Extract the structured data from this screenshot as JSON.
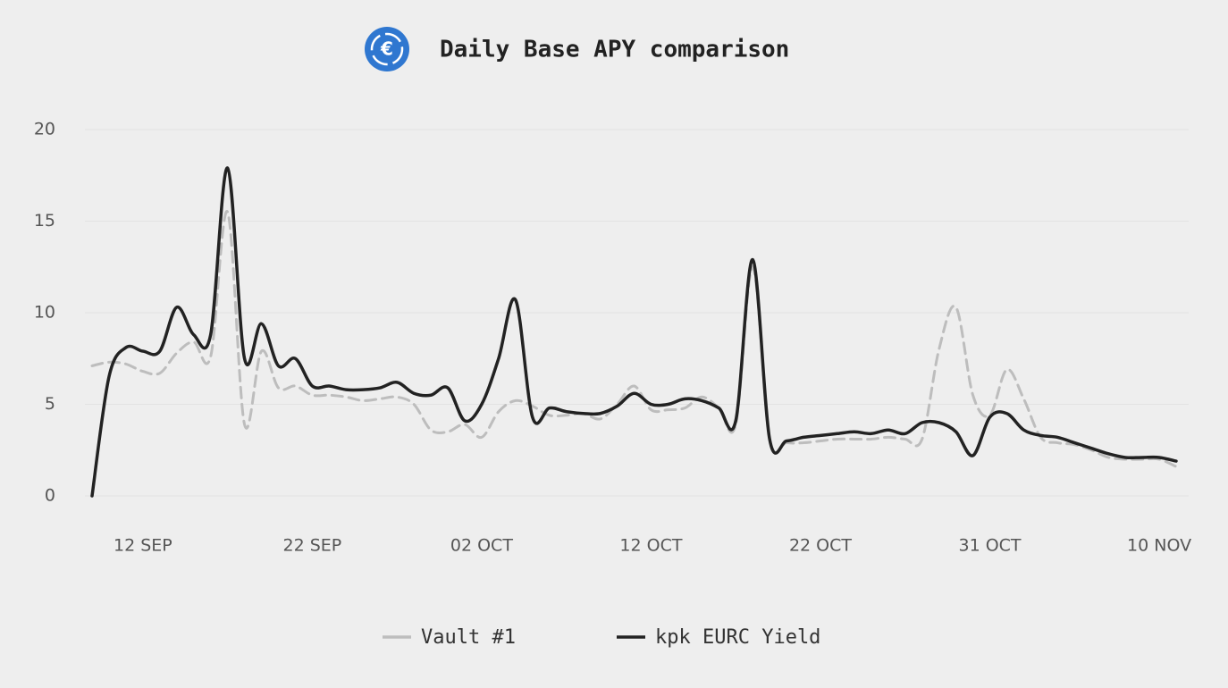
{
  "chart_data": {
    "type": "line",
    "title": "Daily Base APY comparison",
    "categories": [
      null,
      null,
      null,
      "12 SEP",
      null,
      null,
      null,
      null,
      null,
      null,
      null,
      null,
      null,
      "22 SEP",
      null,
      null,
      null,
      null,
      null,
      null,
      null,
      null,
      null,
      "02 OCT",
      null,
      null,
      null,
      null,
      null,
      null,
      null,
      null,
      null,
      "12 OCT",
      null,
      null,
      null,
      null,
      null,
      null,
      null,
      null,
      null,
      "22 OCT",
      null,
      null,
      null,
      null,
      null,
      null,
      null,
      null,
      null,
      "31 OCT",
      null,
      null,
      null,
      null,
      null,
      null,
      null,
      null,
      null,
      "10 NOV",
      null
    ],
    "series": [
      {
        "name": "Vault #1",
        "color": "#bdbdbd",
        "dashed": true,
        "values": [
          7.1,
          7.3,
          7.2,
          6.8,
          6.7,
          7.8,
          8.4,
          7.6,
          15.5,
          3.9,
          7.9,
          5.9,
          6.0,
          5.5,
          5.5,
          5.4,
          5.2,
          5.3,
          5.4,
          5.0,
          3.6,
          3.5,
          3.9,
          3.2,
          4.6,
          5.2,
          4.9,
          4.4,
          4.4,
          4.5,
          4.2,
          5.0,
          6.0,
          4.7,
          4.7,
          4.8,
          5.4,
          4.8,
          3.9,
          12.5,
          3.1,
          2.9,
          2.9,
          3.0,
          3.1,
          3.1,
          3.1,
          3.2,
          3.1,
          3.1,
          8.0,
          10.3,
          5.5,
          4.4,
          6.9,
          5.3,
          3.2,
          2.9,
          2.8,
          2.5,
          2.1,
          2.0,
          2.0,
          2.0,
          1.6
        ]
      },
      {
        "name": "kpk EURC Yield",
        "color": "#222222",
        "dashed": false,
        "values": [
          0,
          6.5,
          8.1,
          7.9,
          7.9,
          10.3,
          8.8,
          8.8,
          17.9,
          7.5,
          9.4,
          7.1,
          7.5,
          6.0,
          6.0,
          5.8,
          5.8,
          5.9,
          6.2,
          5.6,
          5.5,
          5.9,
          4.1,
          5.0,
          7.5,
          10.7,
          4.3,
          4.8,
          4.6,
          4.5,
          4.5,
          4.9,
          5.6,
          5.0,
          5.0,
          5.3,
          5.2,
          4.8,
          4.1,
          12.9,
          3.1,
          3.0,
          3.2,
          3.3,
          3.4,
          3.5,
          3.4,
          3.6,
          3.4,
          4.0,
          4.0,
          3.5,
          2.2,
          4.3,
          4.5,
          3.6,
          3.3,
          3.2,
          2.9,
          2.6,
          2.3,
          2.1,
          2.1,
          2.1,
          1.9
        ]
      }
    ],
    "ylim": [
      0,
      20
    ],
    "yticks": [
      0,
      5,
      10,
      15,
      20
    ],
    "grid": true
  }
}
